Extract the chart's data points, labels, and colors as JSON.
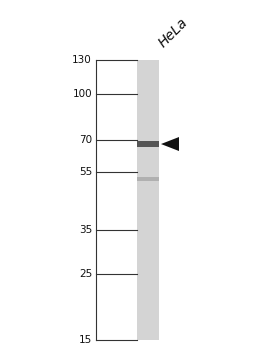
{
  "background_color": "#ffffff",
  "label_top": "HeLa",
  "label_fontsize": 10,
  "mw_markers": [
    130,
    100,
    70,
    55,
    35,
    25,
    15
  ],
  "band_mw": 68,
  "band_faint_mw": 52,
  "arrow_color": "#111111",
  "lane_facecolor": "#d4d4d4",
  "band_color": "#555555",
  "band_faint_color": "#b0b0b0",
  "tick_color": "#333333"
}
